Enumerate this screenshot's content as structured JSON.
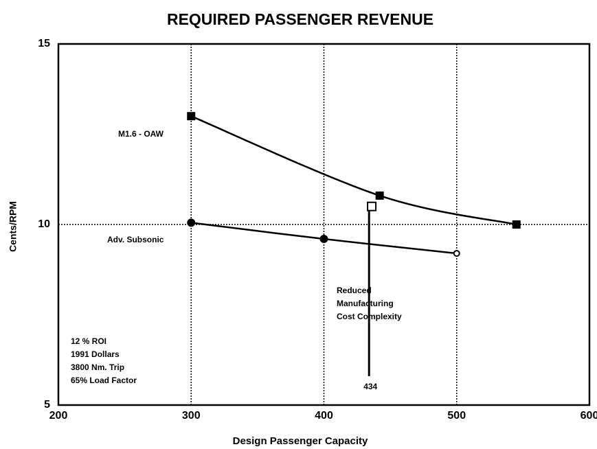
{
  "chart_data": {
    "type": "line",
    "title": "REQUIRED PASSENGER REVENUE",
    "x_label": "Design Passenger Capacity",
    "y_label": "Cents/RPM",
    "xlim": [
      200,
      600
    ],
    "ylim": [
      5,
      15
    ],
    "xticks": [
      200,
      300,
      400,
      500,
      600
    ],
    "yticks": [
      5,
      10,
      15
    ],
    "grid": true,
    "series": [
      {
        "name": "M1.6 - OAW",
        "color": "#000000",
        "marker": "filled-square",
        "x": [
          300,
          442,
          545
        ],
        "values": [
          13,
          10.8,
          10
        ]
      },
      {
        "name": "Adv. Subsonic",
        "color": "#000000",
        "marker": "filled-circle",
        "x": [
          300,
          400,
          500
        ],
        "values": [
          10.05,
          9.6,
          9.2
        ]
      }
    ],
    "reduced_point": {
      "x": 436,
      "y": 10.5,
      "marker": "open-square"
    },
    "marker_line": {
      "x": 434,
      "y_from": 10.4,
      "y_to": 5.8
    },
    "annotation": [
      "Reduced",
      "Manufacturing",
      "Cost  Complexity"
    ],
    "notes": [
      "12 % ROI",
      "1991 Dollars",
      "3800 Nm. Trip",
      "65% Load Factor"
    ]
  }
}
